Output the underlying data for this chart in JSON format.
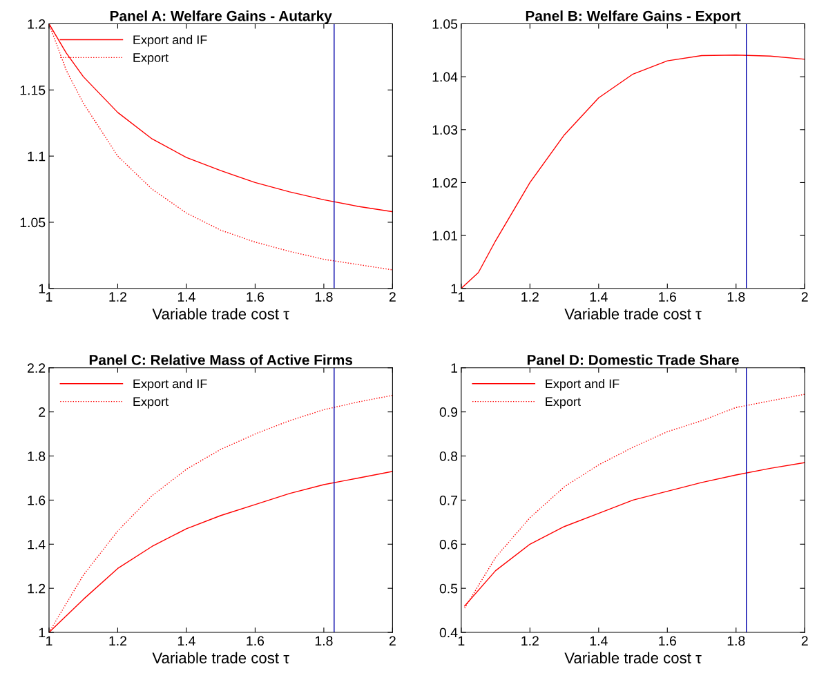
{
  "chart_data": [
    {
      "type": "line",
      "title": "Panel A: Welfare Gains - Autarky",
      "xlabel": "Variable trade cost τ",
      "xlim": [
        1,
        2
      ],
      "xticks": [
        1,
        1.2,
        1.4,
        1.6,
        1.8,
        2
      ],
      "ylim": [
        1,
        1.2
      ],
      "yticks": [
        1,
        1.05,
        1.1,
        1.15,
        1.2
      ],
      "legend": "top left",
      "grid": false,
      "x": [
        1,
        1.05,
        1.1,
        1.2,
        1.3,
        1.4,
        1.5,
        1.6,
        1.7,
        1.8,
        1.9,
        2
      ],
      "series": [
        {
          "name": "Export and IF",
          "color": "#ff0000",
          "line_style": "solid",
          "values": [
            1.2,
            1.178,
            1.16,
            1.133,
            1.113,
            1.099,
            1.089,
            1.08,
            1.073,
            1.067,
            1.062,
            1.058
          ]
        },
        {
          "name": "Export",
          "color": "#ff0000",
          "line_style": "dotted",
          "values": [
            1.2,
            1.165,
            1.14,
            1.1,
            1.075,
            1.057,
            1.044,
            1.035,
            1.028,
            1.022,
            1.018,
            1.014
          ]
        }
      ],
      "ref_lines": [
        {
          "axis": "x",
          "value": 1.83,
          "color": "#0000aa"
        }
      ]
    },
    {
      "type": "line",
      "title": "Panel B: Welfare Gains - Export",
      "xlabel": "Variable trade cost τ",
      "xlim": [
        1,
        2
      ],
      "xticks": [
        1,
        1.2,
        1.4,
        1.6,
        1.8,
        2
      ],
      "ylim": [
        1,
        1.05
      ],
      "yticks": [
        1,
        1.01,
        1.02,
        1.03,
        1.04,
        1.05
      ],
      "grid": false,
      "x": [
        1,
        1.05,
        1.1,
        1.2,
        1.3,
        1.4,
        1.5,
        1.6,
        1.7,
        1.8,
        1.9,
        2
      ],
      "series": [
        {
          "color": "#ff0000",
          "line_style": "solid",
          "values": [
            1.0,
            1.003,
            1.009,
            1.02,
            1.029,
            1.036,
            1.0405,
            1.043,
            1.044,
            1.0441,
            1.0439,
            1.0433
          ]
        }
      ],
      "ref_lines": [
        {
          "axis": "x",
          "value": 1.83,
          "color": "#0000aa"
        }
      ]
    },
    {
      "type": "line",
      "title": "Panel C: Relative Mass of Active Firms",
      "xlabel": "Variable trade cost τ",
      "xlim": [
        1,
        2
      ],
      "xticks": [
        1,
        1.2,
        1.4,
        1.6,
        1.8,
        2
      ],
      "ylim": [
        1,
        2.2
      ],
      "yticks": [
        1,
        1.2,
        1.4,
        1.6,
        1.8,
        2,
        2.2
      ],
      "legend": "top left",
      "grid": false,
      "x": [
        1,
        1.1,
        1.2,
        1.3,
        1.4,
        1.5,
        1.6,
        1.7,
        1.8,
        1.9,
        2
      ],
      "series": [
        {
          "name": "Export and IF",
          "color": "#ff0000",
          "line_style": "solid",
          "values": [
            1,
            1.15,
            1.29,
            1.39,
            1.47,
            1.53,
            1.58,
            1.63,
            1.67,
            1.7,
            1.73
          ]
        },
        {
          "name": "Export",
          "color": "#ff0000",
          "line_style": "dotted",
          "values": [
            1,
            1.26,
            1.46,
            1.62,
            1.74,
            1.83,
            1.9,
            1.96,
            2.01,
            2.045,
            2.075
          ]
        }
      ],
      "ref_lines": [
        {
          "axis": "x",
          "value": 1.83,
          "color": "#0000aa"
        }
      ]
    },
    {
      "type": "line",
      "title": "Panel D: Domestic Trade Share",
      "xlabel": "Variable trade cost τ",
      "xlim": [
        1,
        2
      ],
      "xticks": [
        1,
        1.2,
        1.4,
        1.6,
        1.8,
        2
      ],
      "ylim": [
        0.4,
        1
      ],
      "yticks": [
        0.4,
        0.5,
        0.6,
        0.7,
        0.8,
        0.9,
        1
      ],
      "legend": "top left",
      "grid": false,
      "x": [
        1.01,
        1.1,
        1.2,
        1.3,
        1.4,
        1.5,
        1.6,
        1.7,
        1.8,
        1.9,
        2
      ],
      "series": [
        {
          "name": "Export and IF",
          "color": "#ff0000",
          "line_style": "solid",
          "values": [
            0.46,
            0.54,
            0.6,
            0.64,
            0.67,
            0.7,
            0.72,
            0.74,
            0.757,
            0.772,
            0.785
          ]
        },
        {
          "name": "Export",
          "color": "#ff0000",
          "line_style": "dotted",
          "values": [
            0.455,
            0.57,
            0.66,
            0.73,
            0.78,
            0.82,
            0.855,
            0.88,
            0.91,
            0.925,
            0.94
          ]
        }
      ],
      "ref_lines": [
        {
          "axis": "x",
          "value": 1.83,
          "color": "#0000aa"
        }
      ]
    }
  ]
}
